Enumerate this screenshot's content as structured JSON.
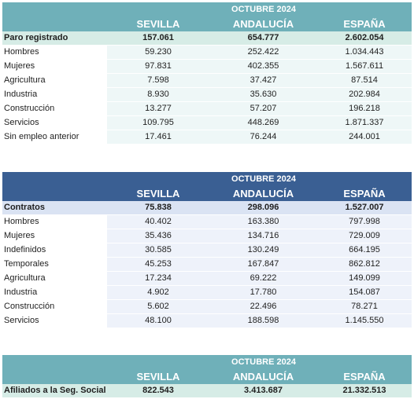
{
  "paro": {
    "period": "OCTUBRE 2024",
    "cols": [
      "SEVILLA",
      "ANDALUCÍA",
      "ESPAÑA"
    ],
    "total": {
      "label": "Paro registrado",
      "values": [
        "157.061",
        "654.777",
        "2.602.054"
      ]
    },
    "rows": [
      {
        "label": "Hombres",
        "values": [
          "59.230",
          "252.422",
          "1.034.443"
        ]
      },
      {
        "label": "Mujeres",
        "values": [
          "97.831",
          "402.355",
          "1.567.611"
        ]
      },
      {
        "label": "Agricultura",
        "values": [
          "7.598",
          "37.427",
          "87.514"
        ]
      },
      {
        "label": "Industria",
        "values": [
          "8.930",
          "35.630",
          "202.984"
        ]
      },
      {
        "label": "Construcción",
        "values": [
          "13.277",
          "57.207",
          "196.218"
        ]
      },
      {
        "label": "Servicios",
        "values": [
          "109.795",
          "448.269",
          "1.871.337"
        ]
      },
      {
        "label": "Sin empleo anterior",
        "values": [
          "17.461",
          "76.244",
          "244.001"
        ]
      }
    ]
  },
  "contratos": {
    "period": "OCTUBRE 2024",
    "cols": [
      "SEVILLA",
      "ANDALUCÍA",
      "ESPAÑA"
    ],
    "total": {
      "label": "Contratos",
      "values": [
        "75.838",
        "298.096",
        "1.527.007"
      ]
    },
    "rows": [
      {
        "label": "Hombres",
        "values": [
          "40.402",
          "163.380",
          "797.998"
        ]
      },
      {
        "label": "Mujeres",
        "values": [
          "35.436",
          "134.716",
          "729.009"
        ]
      },
      {
        "label": "Indefinidos",
        "values": [
          "30.585",
          "130.249",
          "664.195"
        ]
      },
      {
        "label": "Temporales",
        "values": [
          "45.253",
          "167.847",
          "862.812"
        ]
      },
      {
        "label": "Agricultura",
        "values": [
          "17.234",
          "69.222",
          "149.099"
        ]
      },
      {
        "label": "Industria",
        "values": [
          "4.902",
          "17.780",
          "154.087"
        ]
      },
      {
        "label": "Construcción",
        "values": [
          "5.602",
          "22.496",
          "78.271"
        ]
      },
      {
        "label": "Servicios",
        "values": [
          "48.100",
          "188.598",
          "1.145.550"
        ]
      }
    ]
  },
  "afiliados": {
    "period": "OCTUBRE 2024",
    "cols": [
      "SEVILLA",
      "ANDALUCÍA",
      "ESPAÑA"
    ],
    "total": {
      "label": "Afiliados a la Seg. Social",
      "values": [
        "822.543",
        "3.413.687",
        "21.332.513"
      ]
    }
  },
  "colors": {
    "teal_header": "#6fb0b9",
    "blue_header": "#3a5f93",
    "teal_total": "#d6ece6",
    "blue_total": "#dae3f3"
  }
}
